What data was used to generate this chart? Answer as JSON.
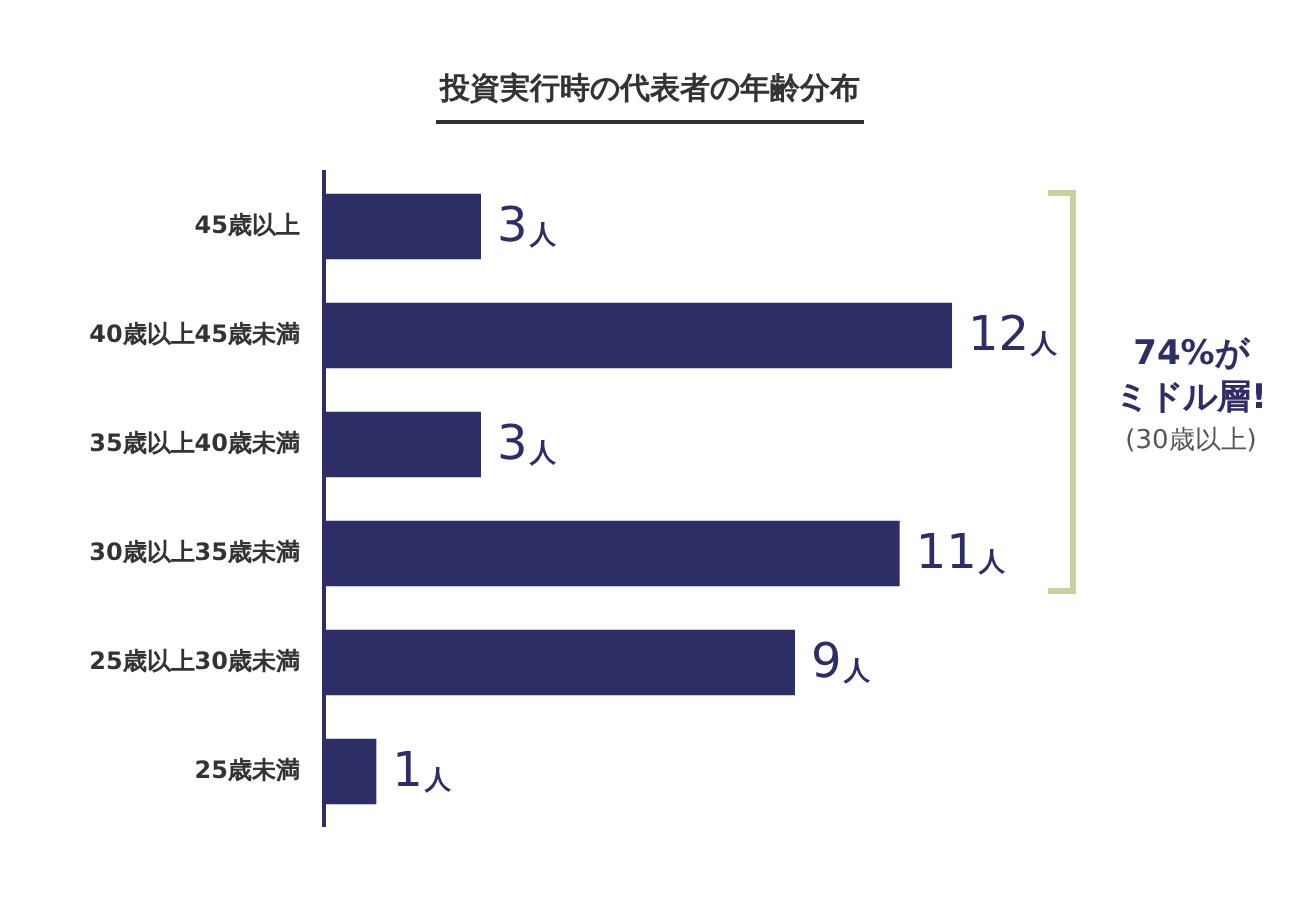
{
  "chart_data": {
    "type": "bar",
    "orientation": "horizontal",
    "title": "投資実行時の代表者の年齢分布",
    "categories": [
      "45歳以上",
      "40歳以上45歳未満",
      "35歳以上40歳未満",
      "30歳以上35歳未満",
      "25歳以上30歳未満",
      "25歳未満"
    ],
    "values": [
      3,
      12,
      3,
      11,
      9,
      1
    ],
    "color": "#2e2e66",
    "value_labels": [
      "3人",
      "12人",
      "3人",
      "11人",
      "9人",
      "1人"
    ],
    "annotations": [
      "74%が",
      "ミドル層!",
      "(30歳以上)"
    ],
    "grid": false,
    "legend": false
  }
}
